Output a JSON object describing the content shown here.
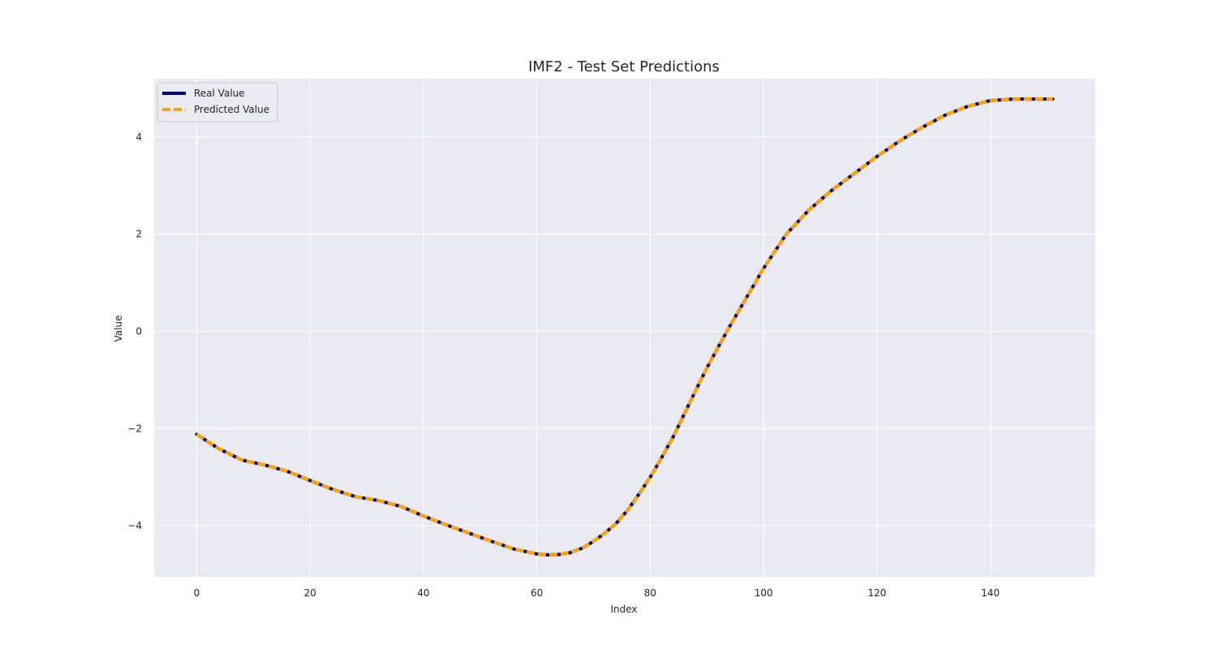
{
  "chart_data": {
    "type": "line",
    "title": "IMF2 - Test Set Predictions",
    "xlabel": "Index",
    "ylabel": "Value",
    "xlim": [
      -7.5,
      158.5
    ],
    "ylim": [
      -5.05,
      5.2
    ],
    "xticks": [
      0,
      20,
      40,
      60,
      80,
      100,
      120,
      140
    ],
    "yticks": [
      -4,
      -2,
      0,
      2,
      4
    ],
    "ytick_labels": [
      "−4",
      "−2",
      "0",
      "2",
      "4"
    ],
    "grid": true,
    "legend_position": "top-left",
    "x": [
      0,
      4,
      8,
      12,
      16,
      20,
      24,
      28,
      32,
      36,
      40,
      44,
      48,
      52,
      56,
      60,
      62,
      64,
      66,
      68,
      70,
      72,
      74,
      76,
      78,
      80,
      82,
      84,
      86,
      88,
      90,
      92,
      94,
      96,
      98,
      100,
      104,
      108,
      112,
      116,
      120,
      124,
      128,
      132,
      136,
      140,
      144,
      148,
      151
    ],
    "series": [
      {
        "name": "Real Value",
        "color": "#000080",
        "style": "solid",
        "values": [
          -2.12,
          -2.42,
          -2.65,
          -2.75,
          -2.88,
          -3.07,
          -3.25,
          -3.4,
          -3.48,
          -3.6,
          -3.8,
          -3.98,
          -4.15,
          -4.32,
          -4.48,
          -4.58,
          -4.6,
          -4.59,
          -4.55,
          -4.46,
          -4.32,
          -4.15,
          -3.95,
          -3.68,
          -3.35,
          -3.0,
          -2.6,
          -2.18,
          -1.7,
          -1.22,
          -0.75,
          -0.32,
          0.1,
          0.5,
          0.9,
          1.3,
          2.0,
          2.5,
          2.9,
          3.25,
          3.6,
          3.92,
          4.2,
          4.45,
          4.63,
          4.75,
          4.78,
          4.78,
          4.78
        ]
      },
      {
        "name": "Predicted Value",
        "color": "#ffa500",
        "style": "dashed",
        "values": [
          -2.12,
          -2.42,
          -2.65,
          -2.75,
          -2.88,
          -3.07,
          -3.25,
          -3.4,
          -3.48,
          -3.6,
          -3.8,
          -3.98,
          -4.15,
          -4.32,
          -4.48,
          -4.58,
          -4.6,
          -4.59,
          -4.55,
          -4.46,
          -4.32,
          -4.15,
          -3.95,
          -3.68,
          -3.35,
          -3.0,
          -2.6,
          -2.18,
          -1.7,
          -1.22,
          -0.75,
          -0.32,
          0.1,
          0.5,
          0.9,
          1.3,
          2.0,
          2.5,
          2.9,
          3.25,
          3.6,
          3.92,
          4.2,
          4.45,
          4.63,
          4.75,
          4.78,
          4.78,
          4.78
        ]
      }
    ],
    "plot_background": "#eaeaf2",
    "grid_color": "#ffffff"
  }
}
